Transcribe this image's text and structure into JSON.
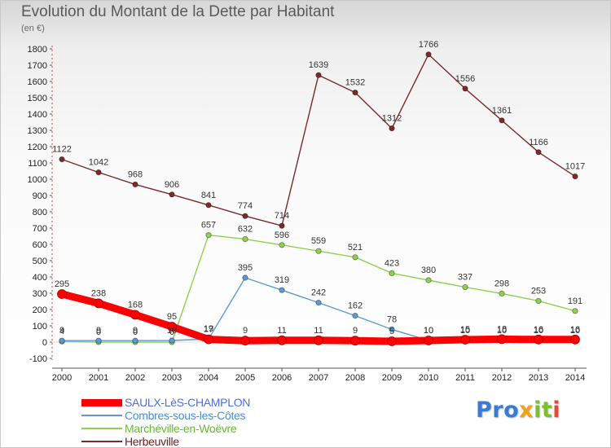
{
  "chart_data": {
    "type": "line",
    "title": "Evolution du Montant de la Dette par Habitant",
    "subtitle": "(en €)",
    "x": [
      2000,
      2001,
      2002,
      2003,
      2004,
      2005,
      2006,
      2007,
      2008,
      2009,
      2010,
      2011,
      2012,
      2013,
      2014
    ],
    "ylim": [
      -100,
      1800
    ],
    "yticks": [
      -100,
      0,
      100,
      200,
      300,
      400,
      500,
      600,
      700,
      800,
      900,
      1000,
      1100,
      1200,
      1300,
      1400,
      1500,
      1600,
      1700,
      1800
    ],
    "grid": false,
    "legend_position": "bottom-left",
    "series": [
      {
        "name": "SAULX-LèS-CHAMPLON",
        "color": "#ff0000",
        "values": [
          295,
          238,
          168,
          95,
          17,
          9,
          11,
          11,
          9,
          5,
          10,
          15,
          18,
          16,
          16
        ]
      },
      {
        "name": "Combres-sous-les-Côtes",
        "color": "#5b9bd5",
        "values": [
          9,
          9,
          9,
          10,
          19,
          395,
          319,
          242,
          162,
          78,
          10,
          10,
          10,
          10,
          10
        ]
      },
      {
        "name": "Marchéville-en-Woëvre",
        "color": "#8fd14f",
        "values": [
          4,
          0,
          0,
          0,
          657,
          632,
          596,
          559,
          521,
          423,
          380,
          337,
          298,
          253,
          191
        ]
      },
      {
        "name": "Herbeuville",
        "color": "#7b2a2a",
        "values": [
          1122,
          1042,
          968,
          906,
          841,
          774,
          714,
          1639,
          1532,
          1312,
          1766,
          1556,
          1361,
          1166,
          1017
        ]
      }
    ]
  },
  "logo": {
    "p1": "Pro",
    "p2": "x",
    "p3": "it",
    "p4": "i"
  }
}
